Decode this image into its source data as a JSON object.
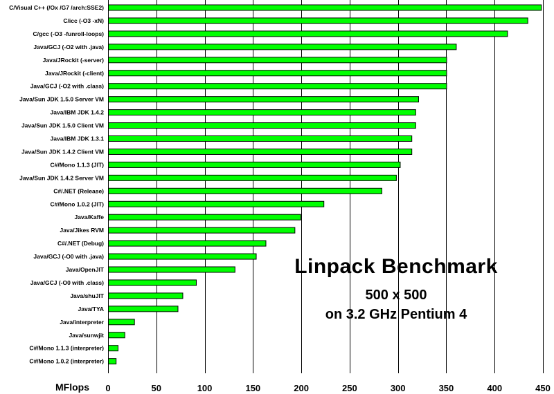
{
  "chart_data": {
    "type": "bar",
    "orientation": "horizontal",
    "title": "Linpack Benchmark",
    "subtitle": "500 x 500",
    "subtitle2": "on 3.2 GHz Pentium 4",
    "xlabel": "MFlops",
    "ylabel": "",
    "xlim": [
      0,
      450
    ],
    "xticks": [
      0,
      50,
      100,
      150,
      200,
      250,
      300,
      350,
      400,
      450
    ],
    "grid": "vertical",
    "bar_color": "#00ff00",
    "categories": [
      "C/Visual C++ (/Ox /G7 /arch:SSE2)",
      "C/icc (-O3 -xN)",
      "C/gcc (-O3 -funroll-loops)",
      "Java/GCJ (-O2 with .java)",
      "Java/JRockit (-server)",
      "Java/JRockit (-client)",
      "Java/GCJ (-O2 with .class)",
      "Java/Sun JDK 1.5.0 Server VM",
      "Java/IBM JDK 1.4.2",
      "Java/Sun JDK 1.5.0 Client VM",
      "Java/IBM JDK 1.3.1",
      "Java/Sun JDK 1.4.2 Client VM",
      "C#/Mono 1.1.3 (JIT)",
      "Java/Sun JDK 1.4.2 Server VM",
      "C#/.NET (Release)",
      "C#/Mono 1.0.2 (JIT)",
      "Java/Kaffe",
      "Java/Jikes RVM",
      "C#/.NET (Debug)",
      "Java/GCJ (-O0 with .java)",
      "Java/OpenJIT",
      "Java/GCJ (-O0 with .class)",
      "Java/shuJIT",
      "Java/TYA",
      "Java/interpreter",
      "Java/sunwjit",
      "C#/Mono 1.1.3 (interpreter)",
      "C#/Mono 1.0.2 (interpreter)"
    ],
    "values": [
      448,
      434,
      413,
      360,
      350,
      350,
      350,
      321,
      318,
      318,
      314,
      314,
      302,
      298,
      283,
      223,
      199,
      193,
      163,
      153,
      131,
      91,
      77,
      72,
      27,
      17,
      10,
      8
    ]
  }
}
